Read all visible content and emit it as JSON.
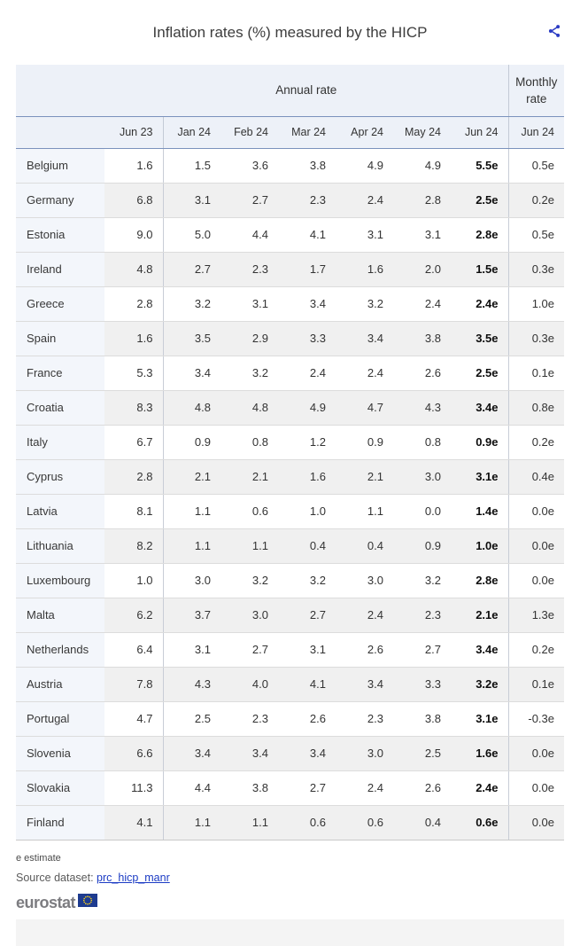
{
  "header": {
    "title": "Inflation rates (%) measured by the HICP",
    "share_icon": "share-icon"
  },
  "chart_data": {
    "type": "table",
    "title": "Inflation rates (%) measured by the HICP",
    "unit": "%",
    "column_groups": {
      "annual": "Annual rate",
      "monthly": "Monthly rate"
    },
    "annual_columns": [
      "Jun 23",
      "Jan 24",
      "Feb 24",
      "Mar 24",
      "Apr 24",
      "May 24",
      "Jun 24"
    ],
    "monthly_column": "Jun 24",
    "note": "e = estimate (values suffixed with e)",
    "rows": [
      {
        "country": "Belgium",
        "values": [
          "1.6",
          "1.5",
          "3.6",
          "3.8",
          "4.9",
          "4.9",
          "5.5e"
        ],
        "monthly": "0.5e"
      },
      {
        "country": "Germany",
        "values": [
          "6.8",
          "3.1",
          "2.7",
          "2.3",
          "2.4",
          "2.8",
          "2.5e"
        ],
        "monthly": "0.2e"
      },
      {
        "country": "Estonia",
        "values": [
          "9.0",
          "5.0",
          "4.4",
          "4.1",
          "3.1",
          "3.1",
          "2.8e"
        ],
        "monthly": "0.5e"
      },
      {
        "country": "Ireland",
        "values": [
          "4.8",
          "2.7",
          "2.3",
          "1.7",
          "1.6",
          "2.0",
          "1.5e"
        ],
        "monthly": "0.3e"
      },
      {
        "country": "Greece",
        "values": [
          "2.8",
          "3.2",
          "3.1",
          "3.4",
          "3.2",
          "2.4",
          "2.4e"
        ],
        "monthly": "1.0e"
      },
      {
        "country": "Spain",
        "values": [
          "1.6",
          "3.5",
          "2.9",
          "3.3",
          "3.4",
          "3.8",
          "3.5e"
        ],
        "monthly": "0.3e"
      },
      {
        "country": "France",
        "values": [
          "5.3",
          "3.4",
          "3.2",
          "2.4",
          "2.4",
          "2.6",
          "2.5e"
        ],
        "monthly": "0.1e"
      },
      {
        "country": "Croatia",
        "values": [
          "8.3",
          "4.8",
          "4.8",
          "4.9",
          "4.7",
          "4.3",
          "3.4e"
        ],
        "monthly": "0.8e"
      },
      {
        "country": "Italy",
        "values": [
          "6.7",
          "0.9",
          "0.8",
          "1.2",
          "0.9",
          "0.8",
          "0.9e"
        ],
        "monthly": "0.2e"
      },
      {
        "country": "Cyprus",
        "values": [
          "2.8",
          "2.1",
          "2.1",
          "1.6",
          "2.1",
          "3.0",
          "3.1e"
        ],
        "monthly": "0.4e"
      },
      {
        "country": "Latvia",
        "values": [
          "8.1",
          "1.1",
          "0.6",
          "1.0",
          "1.1",
          "0.0",
          "1.4e"
        ],
        "monthly": "0.0e"
      },
      {
        "country": "Lithuania",
        "values": [
          "8.2",
          "1.1",
          "1.1",
          "0.4",
          "0.4",
          "0.9",
          "1.0e"
        ],
        "monthly": "0.0e"
      },
      {
        "country": "Luxembourg",
        "values": [
          "1.0",
          "3.0",
          "3.2",
          "3.2",
          "3.0",
          "3.2",
          "2.8e"
        ],
        "monthly": "0.0e"
      },
      {
        "country": "Malta",
        "values": [
          "6.2",
          "3.7",
          "3.0",
          "2.7",
          "2.4",
          "2.3",
          "2.1e"
        ],
        "monthly": "1.3e"
      },
      {
        "country": "Netherlands",
        "values": [
          "6.4",
          "3.1",
          "2.7",
          "3.1",
          "2.6",
          "2.7",
          "3.4e"
        ],
        "monthly": "0.2e"
      },
      {
        "country": "Austria",
        "values": [
          "7.8",
          "4.3",
          "4.0",
          "4.1",
          "3.4",
          "3.3",
          "3.2e"
        ],
        "monthly": "0.1e"
      },
      {
        "country": "Portugal",
        "values": [
          "4.7",
          "2.5",
          "2.3",
          "2.6",
          "2.3",
          "3.8",
          "3.1e"
        ],
        "monthly": "-0.3e"
      },
      {
        "country": "Slovenia",
        "values": [
          "6.6",
          "3.4",
          "3.4",
          "3.4",
          "3.0",
          "2.5",
          "1.6e"
        ],
        "monthly": "0.0e"
      },
      {
        "country": "Slovakia",
        "values": [
          "11.3",
          "4.4",
          "3.8",
          "2.7",
          "2.4",
          "2.6",
          "2.4e"
        ],
        "monthly": "0.0e"
      },
      {
        "country": "Finland",
        "values": [
          "4.1",
          "1.1",
          "1.1",
          "0.6",
          "0.6",
          "0.4",
          "0.6e"
        ],
        "monthly": "0.0e"
      }
    ]
  },
  "footer": {
    "estimate_note": "e estimate",
    "source_label": "Source dataset:",
    "source_link": "prc_hicp_manr",
    "logo_text": "eurostat",
    "logo_flag_icon": "eu-flag-icon"
  },
  "colors": {
    "header_band_bg": "#edf1f8",
    "country_col_bg": "#f3f6fb",
    "even_row_bg": "#f0f0f0",
    "header_separator": "#7b92bc",
    "share_icon_blue": "#2c3cc4",
    "link_blue": "#1b3bc4",
    "eu_flag_blue": "#1e3b8f",
    "eu_star_yellow": "#ffd617"
  }
}
